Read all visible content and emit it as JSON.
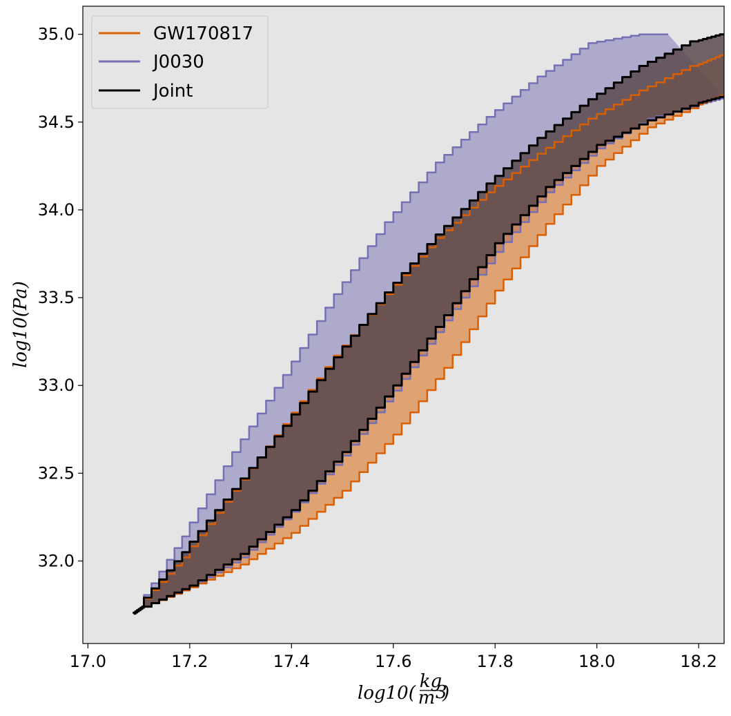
{
  "chart_data": {
    "type": "area",
    "xlabel_text": "log10(",
    "xlabel_frac_num": "kg",
    "xlabel_frac_den": "m",
    "xlabel_frac_den_sup": "3",
    "xlabel_close": ")",
    "ylabel": "log10(Pa)",
    "xlim": [
      16.99,
      18.25
    ],
    "ylim": [
      31.53,
      35.16
    ],
    "x_ticks": [
      17.0,
      17.2,
      17.4,
      17.6,
      17.8,
      18.0,
      18.2
    ],
    "x_tick_labels": [
      "17.0",
      "17.2",
      "17.4",
      "17.6",
      "17.8",
      "18.0",
      "18.2"
    ],
    "y_ticks": [
      32.0,
      32.5,
      33.0,
      33.5,
      34.0,
      34.5,
      35.0
    ],
    "y_tick_labels": [
      "32.0",
      "32.5",
      "33.0",
      "33.5",
      "34.0",
      "34.5",
      "35.0"
    ],
    "grid": false,
    "legend_position": "top-left",
    "background_color": "#e5e5e5",
    "series": [
      {
        "name": "J0030",
        "color": "#7570b3",
        "fill": "rgba(117,112,179,0.5)",
        "upper": [
          [
            17.09,
            31.7
          ],
          [
            17.11,
            31.74
          ],
          [
            17.2,
            32.14
          ],
          [
            17.3,
            32.62
          ],
          [
            17.4,
            33.06
          ],
          [
            17.5,
            33.52
          ],
          [
            17.6,
            33.93
          ],
          [
            17.7,
            34.27
          ],
          [
            17.8,
            34.53
          ],
          [
            17.9,
            34.76
          ],
          [
            18.0,
            34.95
          ],
          [
            18.1,
            35.0
          ],
          [
            18.14,
            35.0
          ]
        ],
        "lower": [
          [
            17.09,
            31.7
          ],
          [
            17.11,
            31.74
          ],
          [
            17.2,
            31.85
          ],
          [
            17.3,
            32.02
          ],
          [
            17.4,
            32.28
          ],
          [
            17.5,
            32.6
          ],
          [
            17.6,
            32.97
          ],
          [
            17.7,
            33.37
          ],
          [
            17.8,
            33.76
          ],
          [
            17.9,
            34.1
          ],
          [
            18.0,
            34.35
          ],
          [
            18.1,
            34.52
          ],
          [
            18.2,
            34.6
          ],
          [
            18.25,
            34.64
          ]
        ]
      },
      {
        "name": "GW170817",
        "color": "#d95f02",
        "fill": "rgba(217,95,2,0.5)",
        "upper": [
          [
            17.09,
            31.7
          ],
          [
            17.11,
            31.74
          ],
          [
            17.2,
            32.02
          ],
          [
            17.3,
            32.4
          ],
          [
            17.4,
            32.78
          ],
          [
            17.5,
            33.17
          ],
          [
            17.6,
            33.52
          ],
          [
            17.7,
            33.84
          ],
          [
            17.8,
            34.1
          ],
          [
            17.9,
            34.32
          ],
          [
            18.0,
            34.52
          ],
          [
            18.1,
            34.68
          ],
          [
            18.2,
            34.82
          ],
          [
            18.25,
            34.88
          ]
        ],
        "lower": [
          [
            17.09,
            31.7
          ],
          [
            17.11,
            31.74
          ],
          [
            17.2,
            31.85
          ],
          [
            17.3,
            31.98
          ],
          [
            17.4,
            32.16
          ],
          [
            17.5,
            32.4
          ],
          [
            17.6,
            32.72
          ],
          [
            17.7,
            33.1
          ],
          [
            17.8,
            33.54
          ],
          [
            17.9,
            33.92
          ],
          [
            18.0,
            34.25
          ],
          [
            18.1,
            34.47
          ],
          [
            18.2,
            34.6
          ],
          [
            18.25,
            34.66
          ]
        ]
      },
      {
        "name": "Joint",
        "color": "#000000",
        "fill": "rgba(0,0,0,0)",
        "upper": [
          [
            17.09,
            31.7
          ],
          [
            17.11,
            31.74
          ],
          [
            17.2,
            32.05
          ],
          [
            17.3,
            32.41
          ],
          [
            17.4,
            32.77
          ],
          [
            17.5,
            33.16
          ],
          [
            17.6,
            33.53
          ],
          [
            17.7,
            33.86
          ],
          [
            17.8,
            34.15
          ],
          [
            17.9,
            34.41
          ],
          [
            18.0,
            34.63
          ],
          [
            18.1,
            34.82
          ],
          [
            18.2,
            34.96
          ],
          [
            18.25,
            35.0
          ]
        ],
        "lower": [
          [
            17.09,
            31.7
          ],
          [
            17.11,
            31.74
          ],
          [
            17.2,
            31.86
          ],
          [
            17.3,
            32.04
          ],
          [
            17.4,
            32.29
          ],
          [
            17.5,
            32.62
          ],
          [
            17.6,
            33.0
          ],
          [
            17.7,
            33.4
          ],
          [
            17.8,
            33.81
          ],
          [
            17.9,
            34.13
          ],
          [
            18.0,
            34.37
          ],
          [
            18.1,
            34.51
          ],
          [
            18.2,
            34.61
          ],
          [
            18.25,
            34.65
          ]
        ]
      }
    ],
    "overlap_color": "#5c4a4e"
  }
}
